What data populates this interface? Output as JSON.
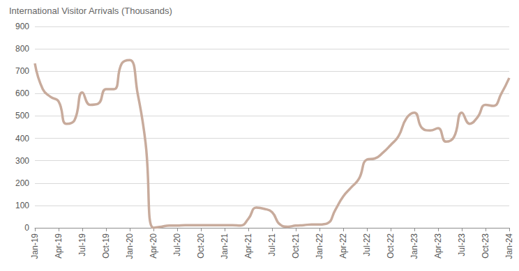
{
  "chart_data": {
    "type": "line",
    "title": "International Visitor Arrivals (Thousands)",
    "categories": [
      "Jan-19",
      null,
      null,
      "Apr-19",
      null,
      null,
      "Jul-19",
      null,
      null,
      "Oct-19",
      null,
      null,
      "Jan-20",
      null,
      null,
      "Apr-20",
      null,
      null,
      "Jul-20",
      null,
      null,
      "Oct-20",
      null,
      null,
      "Jan-21",
      null,
      null,
      "Apr-21",
      null,
      null,
      "Jul-21",
      null,
      null,
      "Oct-21",
      null,
      null,
      "Jan-22",
      null,
      null,
      "Apr-22",
      null,
      null,
      "Jul-22",
      null,
      null,
      "Oct-22",
      null,
      null,
      "Jan-23",
      null,
      null,
      "Apr-23",
      null,
      null,
      "Jul-23",
      null,
      null,
      "Oct-23",
      null,
      null,
      "Jan-24"
    ],
    "values": [
      735,
      620,
      585,
      565,
      465,
      480,
      605,
      550,
      555,
      620,
      620,
      735,
      750,
      600,
      380,
      0,
      5,
      10,
      10,
      12,
      12,
      12,
      12,
      12,
      12,
      12,
      10,
      40,
      90,
      85,
      70,
      15,
      5,
      10,
      12,
      15,
      15,
      20,
      80,
      140,
      180,
      220,
      305,
      310,
      335,
      370,
      410,
      490,
      515,
      445,
      435,
      445,
      385,
      405,
      515,
      465,
      495,
      550,
      545,
      600,
      670
    ],
    "color": "#c8ab9c",
    "ylim": [
      0,
      900
    ],
    "yticks": [
      0,
      100,
      200,
      300,
      400,
      500,
      600,
      700,
      800,
      900
    ],
    "grid": true
  }
}
